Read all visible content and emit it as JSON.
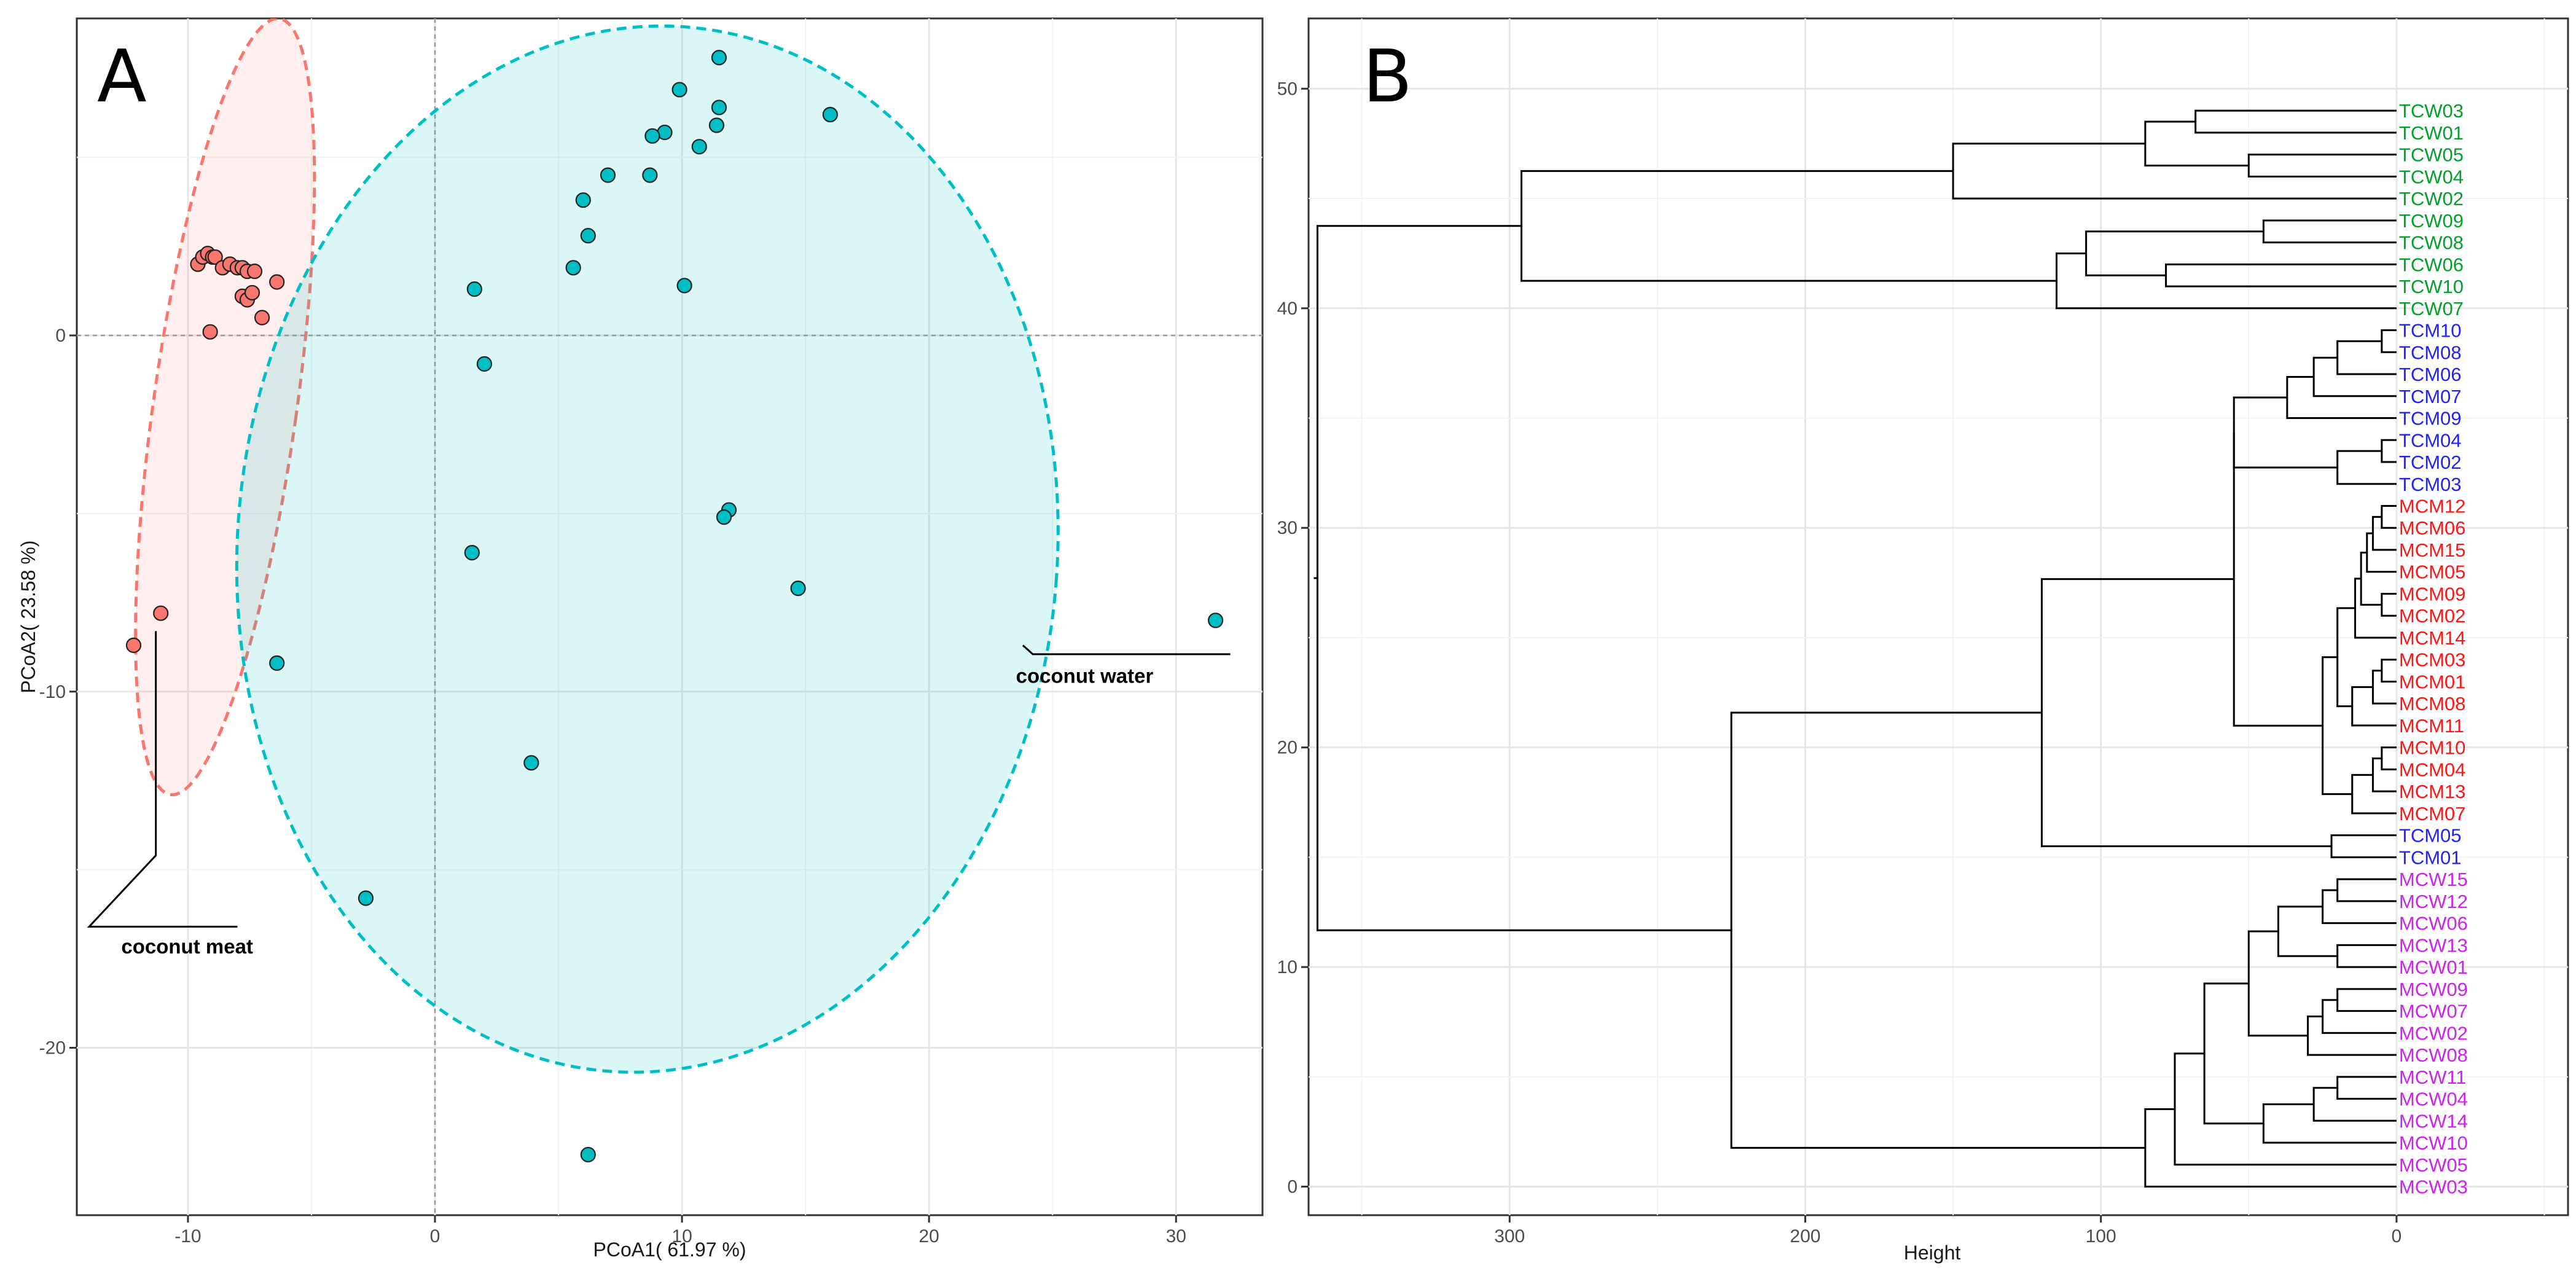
{
  "chart_data": [
    {
      "type": "scatter",
      "panel_label": "A",
      "xlabel": "PCoA1( 61.97 %)",
      "ylabel": "PCoA2( 23.58 %)",
      "xlim": [
        -14.5,
        33.5
      ],
      "ylim": [
        -24.7,
        8.9
      ],
      "xticks": [
        -10,
        0,
        10,
        20,
        30
      ],
      "yticks": [
        0,
        -10,
        -20
      ],
      "xtick_labels": [
        "-10",
        "0",
        "10",
        "20",
        "30"
      ],
      "ytick_labels": [
        "0",
        "-10",
        "-20"
      ],
      "grid": true,
      "colors": {
        "meat": "#f8766d",
        "water": "#00bfc4"
      },
      "series": [
        {
          "name": "coconut meat",
          "color": "#f8766d",
          "points": [
            [
              -9.6,
              2.0
            ],
            [
              -9.4,
              2.2
            ],
            [
              -9.2,
              2.3
            ],
            [
              -9.0,
              2.2
            ],
            [
              -8.9,
              2.2
            ],
            [
              -8.6,
              1.9
            ],
            [
              -8.3,
              2.0
            ],
            [
              -8.0,
              1.9
            ],
            [
              -7.8,
              1.9
            ],
            [
              -7.6,
              1.8
            ],
            [
              -7.3,
              1.8
            ],
            [
              -7.8,
              1.1
            ],
            [
              -7.6,
              1.0
            ],
            [
              -7.4,
              1.2
            ],
            [
              -6.4,
              1.5
            ],
            [
              -7.0,
              0.5
            ],
            [
              -9.1,
              0.1
            ],
            [
              -12.2,
              -8.7
            ],
            [
              -11.1,
              -7.8
            ]
          ],
          "ellipse": {
            "center": [
              -8.5,
              -2.0
            ],
            "rx": 2.9,
            "ry": 11.0,
            "rotation_deg": 8
          }
        },
        {
          "name": "coconut water",
          "color": "#00bfc4",
          "points": [
            [
              11.5,
              7.8
            ],
            [
              9.9,
              6.9
            ],
            [
              16.0,
              6.2
            ],
            [
              11.5,
              6.4
            ],
            [
              11.4,
              5.9
            ],
            [
              9.3,
              5.7
            ],
            [
              8.8,
              5.6
            ],
            [
              10.7,
              5.3
            ],
            [
              7.0,
              4.5
            ],
            [
              8.7,
              4.5
            ],
            [
              6.0,
              3.8
            ],
            [
              6.2,
              2.8
            ],
            [
              5.6,
              1.9
            ],
            [
              10.1,
              1.4
            ],
            [
              1.6,
              1.3
            ],
            [
              2.0,
              -0.8
            ],
            [
              11.9,
              -4.9
            ],
            [
              11.7,
              -5.1
            ],
            [
              1.5,
              -6.1
            ],
            [
              14.7,
              -7.1
            ],
            [
              -6.4,
              -9.2
            ],
            [
              31.6,
              -8.0
            ],
            [
              3.9,
              -12.0
            ],
            [
              -2.8,
              -15.8
            ],
            [
              6.2,
              -23.0
            ]
          ],
          "ellipse": {
            "center": [
              8.6,
              -6.0
            ],
            "rx": 16.6,
            "ry": 14.7,
            "rotation_deg": 4
          }
        }
      ],
      "annotations": [
        "coconut water",
        "coconut meat"
      ]
    },
    {
      "type": "dendrogram",
      "panel_label": "B",
      "xlabel": "Height",
      "ylabel": "",
      "xlim": [
        368,
        -58
      ],
      "ylim": [
        -1.3,
        53.2
      ],
      "xticks": [
        300,
        200,
        100,
        0
      ],
      "xtick_labels": [
        "300",
        "200",
        "100",
        "0"
      ],
      "yticks": [
        0,
        10,
        20,
        30,
        40,
        50
      ],
      "ytick_labels": [
        "0",
        "10",
        "20",
        "30",
        "40",
        "50"
      ],
      "grid": true,
      "colors": {
        "TCW": "#00a02a",
        "TCM": "#2121ff",
        "MCM": "#ff1515",
        "MCW": "#cc22ee"
      },
      "leaves": [
        {
          "label": "MCW03",
          "group": "MCW"
        },
        {
          "label": "MCW05",
          "group": "MCW"
        },
        {
          "label": "MCW10",
          "group": "MCW"
        },
        {
          "label": "MCW14",
          "group": "MCW"
        },
        {
          "label": "MCW04",
          "group": "MCW"
        },
        {
          "label": "MCW11",
          "group": "MCW"
        },
        {
          "label": "MCW08",
          "group": "MCW"
        },
        {
          "label": "MCW02",
          "group": "MCW"
        },
        {
          "label": "MCW07",
          "group": "MCW"
        },
        {
          "label": "MCW09",
          "group": "MCW"
        },
        {
          "label": "MCW01",
          "group": "MCW"
        },
        {
          "label": "MCW13",
          "group": "MCW"
        },
        {
          "label": "MCW06",
          "group": "MCW"
        },
        {
          "label": "MCW12",
          "group": "MCW"
        },
        {
          "label": "MCW15",
          "group": "MCW"
        },
        {
          "label": "TCM01",
          "group": "TCM"
        },
        {
          "label": "TCM05",
          "group": "TCM"
        },
        {
          "label": "MCM07",
          "group": "MCM"
        },
        {
          "label": "MCM13",
          "group": "MCM"
        },
        {
          "label": "MCM04",
          "group": "MCM"
        },
        {
          "label": "MCM10",
          "group": "MCM"
        },
        {
          "label": "MCM11",
          "group": "MCM"
        },
        {
          "label": "MCM08",
          "group": "MCM"
        },
        {
          "label": "MCM01",
          "group": "MCM"
        },
        {
          "label": "MCM03",
          "group": "MCM"
        },
        {
          "label": "MCM14",
          "group": "MCM"
        },
        {
          "label": "MCM02",
          "group": "MCM"
        },
        {
          "label": "MCM09",
          "group": "MCM"
        },
        {
          "label": "MCM05",
          "group": "MCM"
        },
        {
          "label": "MCM15",
          "group": "MCM"
        },
        {
          "label": "MCM06",
          "group": "MCM"
        },
        {
          "label": "MCM12",
          "group": "MCM"
        },
        {
          "label": "TCM03",
          "group": "TCM"
        },
        {
          "label": "TCM02",
          "group": "TCM"
        },
        {
          "label": "TCM04",
          "group": "TCM"
        },
        {
          "label": "TCM09",
          "group": "TCM"
        },
        {
          "label": "TCM07",
          "group": "TCM"
        },
        {
          "label": "TCM06",
          "group": "TCM"
        },
        {
          "label": "TCM08",
          "group": "TCM"
        },
        {
          "label": "TCM10",
          "group": "TCM"
        },
        {
          "label": "TCW07",
          "group": "TCW"
        },
        {
          "label": "TCW10",
          "group": "TCW"
        },
        {
          "label": "TCW06",
          "group": "TCW"
        },
        {
          "label": "TCW08",
          "group": "TCW"
        },
        {
          "label": "TCW09",
          "group": "TCW"
        },
        {
          "label": "TCW02",
          "group": "TCW"
        },
        {
          "label": "TCW04",
          "group": "TCW"
        },
        {
          "label": "TCW05",
          "group": "TCW"
        },
        {
          "label": "TCW01",
          "group": "TCW"
        },
        {
          "label": "TCW03",
          "group": "TCW"
        }
      ],
      "merges": [
        [
          "TCW04",
          "TCW05",
          50
        ],
        [
          "TCW03",
          "TCW01",
          68
        ],
        [
          "m0",
          "m1",
          85
        ],
        [
          "m2",
          "TCW02",
          150
        ],
        [
          "TCW08",
          "TCW09",
          45
        ],
        [
          "TCW10",
          "TCW06",
          78
        ],
        [
          "m4",
          "m5",
          105
        ],
        [
          "TCW07",
          "m6",
          115
        ],
        [
          "m3",
          "m7",
          296
        ],
        [
          "TCM10",
          "TCM08",
          5
        ],
        [
          "m9",
          "TCM06",
          20
        ],
        [
          "m10",
          "TCM07",
          28
        ],
        [
          "m11",
          "TCM09",
          37
        ],
        [
          "TCM02",
          "TCM04",
          5
        ],
        [
          "m13",
          "TCM03",
          20
        ],
        [
          "m12",
          "m14",
          55
        ],
        [
          "MCM12",
          "MCM06",
          5
        ],
        [
          "m16",
          "MCM15",
          8
        ],
        [
          "m17",
          "MCM05",
          10
        ],
        [
          "MCM09",
          "MCM02",
          5
        ],
        [
          "m18",
          "m19",
          12
        ],
        [
          "m20",
          "MCM14",
          14
        ],
        [
          "MCM03",
          "MCM01",
          5
        ],
        [
          "m22",
          "MCM08",
          8
        ],
        [
          "m23",
          "MCM11",
          15
        ],
        [
          "m21",
          "m24",
          20
        ],
        [
          "MCM10",
          "MCM04",
          5
        ],
        [
          "m26",
          "MCM13",
          8
        ],
        [
          "m27",
          "MCM07",
          15
        ],
        [
          "m25",
          "m28",
          25
        ],
        [
          "m15",
          "m29",
          55
        ],
        [
          "TCM05",
          "TCM01",
          22
        ],
        [
          "m30",
          "m31",
          120
        ],
        [
          "MCW15",
          "MCW12",
          20
        ],
        [
          "m33",
          "MCW06",
          25
        ],
        [
          "MCW13",
          "MCW01",
          20
        ],
        [
          "m34",
          "m35",
          40
        ],
        [
          "MCW09",
          "MCW07",
          20
        ],
        [
          "m37",
          "MCW02",
          25
        ],
        [
          "m38",
          "MCW08",
          30
        ],
        [
          "m36",
          "m39",
          50
        ],
        [
          "MCW11",
          "MCW04",
          20
        ],
        [
          "m41",
          "MCW14",
          28
        ],
        [
          "m42",
          "MCW10",
          45
        ],
        [
          "m40",
          "m43",
          65
        ],
        [
          "m44",
          "MCW05",
          75
        ],
        [
          "m45",
          "MCW03",
          85
        ],
        [
          "m32",
          "m46",
          225
        ],
        [
          "m8",
          "m47",
          365
        ]
      ]
    }
  ]
}
